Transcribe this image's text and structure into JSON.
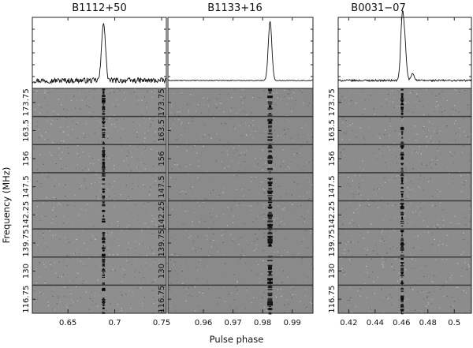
{
  "figure": {
    "xlabel": "Pulse phase",
    "ylabel": "Frequency (MHz)"
  },
  "chart_data": [
    {
      "type": "line+heatmap",
      "title": "B1112+50",
      "xlim": [
        0.612,
        0.755
      ],
      "xticks": [
        0.65,
        0.7,
        0.75
      ],
      "xticklabels": [
        "0.65",
        "0.7",
        "0.75"
      ],
      "freq_bands_mhz": [
        "173.75",
        "163.5",
        "156",
        "147.5",
        "142.25",
        "139.75",
        "130",
        "116.75"
      ],
      "profile": {
        "peak_phase": 0.688,
        "width": 0.002,
        "noise": 0.09,
        "components": [
          {
            "phase": 0.688,
            "amp": 1.0
          }
        ]
      },
      "waterfall": {
        "pulse_phase": 0.688,
        "grey_background": "#8e8e8e"
      }
    },
    {
      "type": "line+heatmap",
      "title": "B1133+16",
      "xlim": [
        0.948,
        0.997
      ],
      "xticks": [
        0.96,
        0.97,
        0.98,
        0.99
      ],
      "xticklabels": [
        "0.96",
        "0.97",
        "0.98",
        "0.99"
      ],
      "freq_bands_mhz": [
        "173.75",
        "163.5",
        "156",
        "147.5",
        "142.25",
        "139.75",
        "130",
        "116.75"
      ],
      "profile": {
        "peak_phase": 0.9825,
        "width": 0.0006,
        "noise": 0.012,
        "components": [
          {
            "phase": 0.9825,
            "amp": 1.0
          }
        ]
      },
      "waterfall": {
        "pulse_phase": 0.9825,
        "grey_background": "#8a8a8a"
      }
    },
    {
      "type": "line+heatmap",
      "title": "B0031−07",
      "xlim": [
        0.412,
        0.513
      ],
      "xticks": [
        0.42,
        0.44,
        0.46,
        0.48,
        0.5
      ],
      "xticklabels": [
        "0.42",
        "0.44",
        "0.46",
        "0.48",
        "0.5"
      ],
      "freq_bands_mhz": [
        "173.75",
        "163.5",
        "156",
        "147.5",
        "142.25",
        "139.75",
        "130",
        "116.75"
      ],
      "profile": {
        "peak_phase": 0.4605,
        "width": 0.0012,
        "noise": 0.03,
        "components": [
          {
            "phase": 0.4605,
            "amp": 1.0
          },
          {
            "phase": 0.4625,
            "amp": 0.55
          },
          {
            "phase": 0.4685,
            "amp": 0.12
          }
        ]
      },
      "waterfall": {
        "pulse_phase": 0.4605,
        "grey_background": "#8c8c8c"
      }
    }
  ]
}
